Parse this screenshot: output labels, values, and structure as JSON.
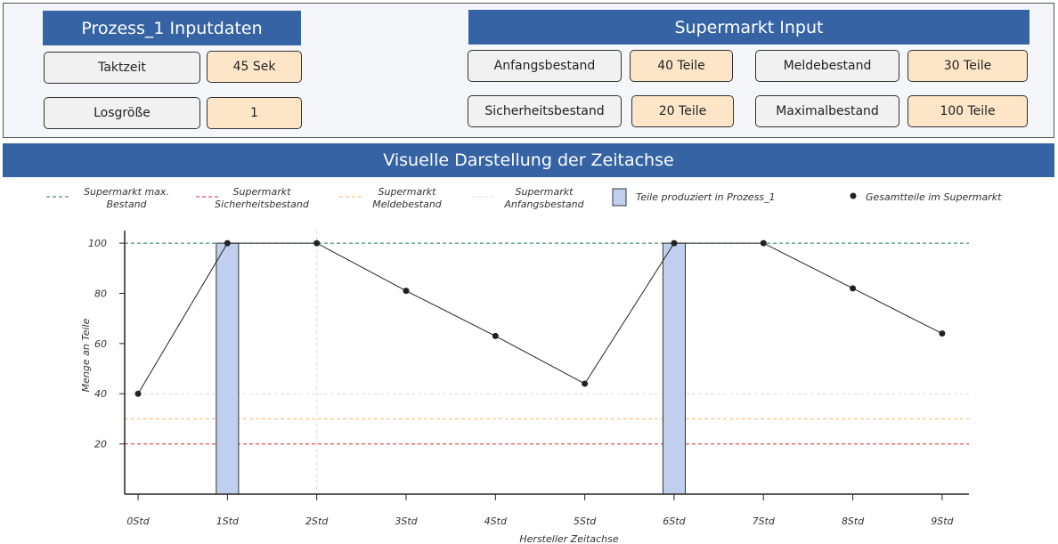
{
  "process_panel": {
    "title": "Prozess_1 Inputdaten",
    "fields": [
      {
        "label": "Taktzeit",
        "value": "45 Sek"
      },
      {
        "label": "Losgröße",
        "value": "1"
      }
    ]
  },
  "supermarket_panel": {
    "title": "Supermarkt Input",
    "fields": [
      {
        "label": "Anfangsbestand",
        "value": "40 Teile"
      },
      {
        "label": "Meldebestand",
        "value": "30 Teile"
      },
      {
        "label": "Sicherheitsbestand",
        "value": "20 Teile"
      },
      {
        "label": "Maximalbestand",
        "value": "100 Teile"
      }
    ]
  },
  "chart_title": "Visuelle Darstellung der Zeitachse",
  "colors": {
    "header": "#3563a3",
    "max_line": "#1f7a5a",
    "safety_line": "#d62728",
    "reorder_line": "#f5b86b",
    "start_line": "#dddddd",
    "bar_fill": "#c0cfee",
    "bar_stroke": "#333333",
    "total_line": "#222222"
  },
  "chart_data": {
    "type": "line",
    "legend": [
      {
        "lines": [
          "Supermarkt max.",
          "Bestand"
        ],
        "kind": "dash",
        "color": "#1f7a5a"
      },
      {
        "lines": [
          "Supermarkt",
          "Sicherheitsbestand"
        ],
        "kind": "dash",
        "color": "#d62728"
      },
      {
        "lines": [
          "Supermarkt",
          "Meldebestand"
        ],
        "kind": "dash",
        "color": "#f5b86b"
      },
      {
        "lines": [
          "Supermarkt",
          "Anfangsbestand"
        ],
        "kind": "dash",
        "color": "#dddddd"
      },
      {
        "lines": [
          "Teile produziert in Prozess_1"
        ],
        "kind": "bar",
        "color": "#c0cfee"
      },
      {
        "lines": [
          "Gesamtteile im Supermarkt"
        ],
        "kind": "dot",
        "color": "#222222"
      }
    ],
    "x_ticks": [
      "0Std",
      "1Std",
      "2Std",
      "3Std",
      "4Std",
      "5Std",
      "6Std",
      "7Std",
      "8Std",
      "9Std"
    ],
    "xlabel": "Hersteller Zeitachse",
    "ylabel": "Menge an Teile",
    "y_ticks": [
      20,
      40,
      60,
      80,
      100
    ],
    "ylim": [
      0,
      105
    ],
    "xlim": [
      -0.15,
      9.3
    ],
    "hlines": [
      {
        "name": "Supermarkt max. Bestand",
        "y": 100,
        "color": "#1f7a5a"
      },
      {
        "name": "Supermarkt Sicherheitsbestand",
        "y": 20,
        "color": "#d62728"
      },
      {
        "name": "Supermarkt Meldebestand",
        "y": 30,
        "color": "#f5b86b"
      },
      {
        "name": "Supermarkt Anfangsbestand",
        "y": 40,
        "color": "#dddddd"
      }
    ],
    "vlines": [
      {
        "x": 2,
        "color": "#dddddd"
      }
    ],
    "bars": {
      "name": "Teile produziert in Prozess_1",
      "x": [
        1,
        6
      ],
      "values": [
        100,
        100
      ],
      "width": 0.25
    },
    "series": [
      {
        "name": "Gesamtteile im Supermarkt",
        "x": [
          0,
          1,
          2,
          3,
          4,
          5,
          6,
          7,
          8,
          9
        ],
        "y": [
          40,
          100,
          100,
          81,
          63,
          44,
          100,
          100,
          82,
          64
        ]
      }
    ]
  }
}
